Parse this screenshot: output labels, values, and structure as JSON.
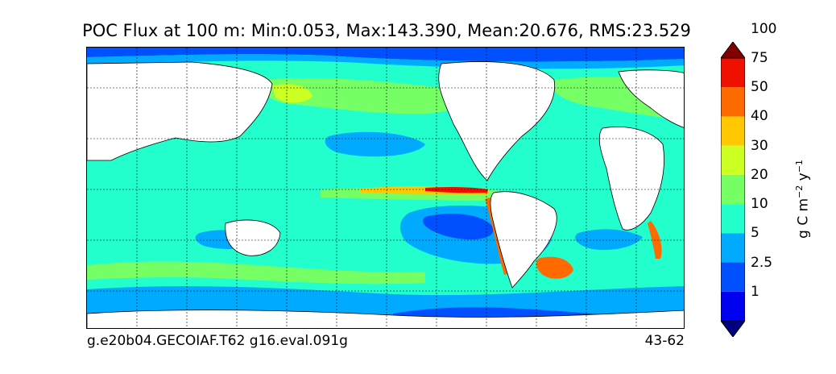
{
  "title": "POC Flux at 100 m: Min:0.053, Max:143.390, Mean:20.676, RMS:23.529",
  "footer": {
    "left": "g.e20b04.GECOIAF.T62 g16.eval.091g",
    "right": "43-62"
  },
  "colorbar": {
    "levels": [
      "1",
      "2.5",
      "5",
      "10",
      "20",
      "30",
      "40",
      "50",
      "75",
      "100"
    ],
    "colors": [
      "#000080",
      "#0000f0",
      "#0050ff",
      "#00aaff",
      "#22ffcc",
      "#77ff66",
      "#ccff22",
      "#ffc800",
      "#ff6a00",
      "#f01000",
      "#800000"
    ],
    "units": {
      "base": "g C m",
      "exp1": "−2",
      "mid": " y",
      "exp2": "−1"
    }
  },
  "map": {
    "projection": "cylindrical equidistant",
    "land_color": "#ffffff",
    "grid": "dashed graticule"
  }
}
